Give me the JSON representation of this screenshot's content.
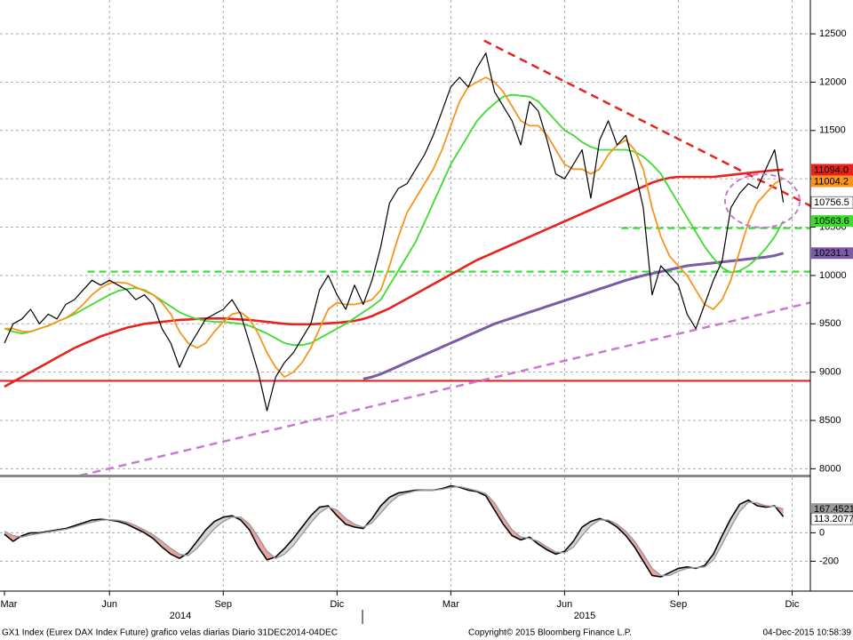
{
  "chart_data": {
    "type": "line",
    "categories": [
      "Mar",
      null,
      null,
      null,
      null,
      null,
      null,
      null,
      null,
      null,
      null,
      null,
      "Jun",
      null,
      null,
      null,
      null,
      null,
      null,
      null,
      null,
      null,
      null,
      null,
      null,
      "Sep",
      null,
      null,
      null,
      null,
      null,
      null,
      null,
      null,
      null,
      null,
      null,
      null,
      "Dic",
      null,
      null,
      null,
      null,
      null,
      null,
      null,
      null,
      null,
      null,
      null,
      null,
      "Mar",
      null,
      null,
      null,
      null,
      null,
      null,
      null,
      null,
      null,
      null,
      null,
      null,
      "Jun",
      null,
      null,
      null,
      null,
      null,
      null,
      null,
      null,
      null,
      null,
      null,
      null,
      "Sep",
      null,
      null,
      null,
      null,
      null,
      null,
      null,
      null,
      null,
      null,
      null,
      null,
      "Dic"
    ],
    "years": [
      "2014",
      "2015"
    ],
    "ylim": [
      7930,
      12850
    ],
    "yticks": [
      8000,
      8500,
      9000,
      9500,
      10000,
      10500,
      11000,
      11500,
      12000,
      12500
    ],
    "grid": true,
    "series": [
      {
        "color": "#000000",
        "values": [
          9300,
          9500,
          9550,
          9650,
          9500,
          9600,
          9550,
          9700,
          9750,
          9850,
          9950,
          9900,
          9950,
          9900,
          9850,
          9750,
          9800,
          9700,
          9450,
          9300,
          9050,
          9250,
          9400,
          9550,
          9600,
          9650,
          9750,
          9600,
          9300,
          9000,
          8600,
          8950,
          9100,
          9200,
          9350,
          9500,
          9850,
          10000,
          9800,
          9650,
          9900,
          9700,
          9950,
          10300,
          10750,
          10900,
          10950,
          11100,
          11250,
          11450,
          11700,
          11950,
          12050,
          11950,
          12150,
          12300,
          11900,
          11750,
          11600,
          11350,
          11800,
          11700,
          11400,
          11050,
          11000,
          11150,
          11300,
          10800,
          11400,
          11600,
          11350,
          11450,
          11100,
          10700,
          9800,
          10100,
          10000,
          9900,
          9600,
          9450,
          9700,
          9950,
          10150,
          10700,
          10850,
          10950,
          10900,
          11100,
          11300,
          10756.5,
          null
        ]
      },
      {
        "color": "#f7941d",
        "values": [
          9450,
          9450,
          9420,
          9420,
          9450,
          9480,
          9520,
          9560,
          9620,
          9700,
          9800,
          9870,
          9920,
          9930,
          9920,
          9880,
          9840,
          9800,
          9720,
          9600,
          9420,
          9300,
          9250,
          9300,
          9420,
          9520,
          9600,
          9620,
          9550,
          9400,
          9200,
          9050,
          8950,
          9000,
          9100,
          9250,
          9450,
          9650,
          9720,
          9700,
          9700,
          9720,
          9750,
          9850,
          10100,
          10400,
          10650,
          10800,
          10950,
          11100,
          11300,
          11550,
          11800,
          11950,
          12000,
          12050,
          12000,
          11900,
          11750,
          11600,
          11550,
          11550,
          11450,
          11300,
          11150,
          11100,
          11100,
          11050,
          11100,
          11250,
          11350,
          11400,
          11300,
          11100,
          10700,
          10400,
          10200,
          10100,
          10000,
          9850,
          9700,
          9650,
          9750,
          9950,
          10250,
          10550,
          10750,
          10850,
          10950,
          11004.2,
          null
        ]
      },
      {
        "color": "#3ddc2e",
        "values": [
          9450,
          9420,
          9400,
          9420,
          9450,
          9480,
          9520,
          9560,
          9600,
          9650,
          9700,
          9750,
          9800,
          9840,
          9860,
          9870,
          9850,
          9800,
          9740,
          9680,
          9620,
          9580,
          9550,
          9530,
          9520,
          9520,
          9510,
          9500,
          9480,
          9440,
          9400,
          9350,
          9300,
          9280,
          9280,
          9300,
          9350,
          9400,
          9450,
          9500,
          9560,
          9620,
          9680,
          9750,
          9900,
          10050,
          10200,
          10350,
          10550,
          10750,
          10950,
          11150,
          11300,
          11450,
          11600,
          11700,
          11780,
          11850,
          11870,
          11860,
          11850,
          11800,
          11700,
          11600,
          11500,
          11450,
          11380,
          11330,
          11300,
          11300,
          11300,
          11300,
          11280,
          11230,
          11150,
          11050,
          10900,
          10750,
          10600,
          10450,
          10300,
          10180,
          10080,
          10030,
          10050,
          10100,
          10180,
          10280,
          10400,
          10563.6,
          null
        ]
      },
      {
        "color": "#e8231e",
        "last_label": "11094.0",
        "values": [
          8850,
          8900,
          8950,
          9000,
          9050,
          9100,
          9150,
          9200,
          9250,
          9290,
          9330,
          9370,
          9400,
          9430,
          9460,
          9480,
          9500,
          9510,
          9520,
          9530,
          9540,
          9545,
          9550,
          9555,
          9555,
          9555,
          9550,
          9545,
          9540,
          9530,
          9520,
          9510,
          9500,
          9495,
          9495,
          9495,
          9500,
          9505,
          9510,
          9520,
          9530,
          9550,
          9580,
          9620,
          9660,
          9710,
          9760,
          9810,
          9860,
          9910,
          9960,
          10010,
          10060,
          10110,
          10160,
          10200,
          10240,
          10280,
          10320,
          10360,
          10400,
          10440,
          10480,
          10520,
          10560,
          10600,
          10640,
          10680,
          10720,
          10760,
          10800,
          10840,
          10880,
          10920,
          10960,
          10990,
          11010,
          11020,
          11020,
          11020,
          11020,
          11020,
          11030,
          11040,
          11050,
          11060,
          11070,
          11080,
          11090,
          11094,
          null
        ]
      },
      {
        "color": "#7b5aa6",
        "values": [
          null,
          null,
          null,
          null,
          null,
          null,
          null,
          null,
          null,
          null,
          null,
          null,
          null,
          null,
          null,
          null,
          null,
          null,
          null,
          null,
          null,
          null,
          null,
          null,
          null,
          null,
          null,
          null,
          null,
          null,
          null,
          null,
          null,
          null,
          null,
          null,
          null,
          null,
          null,
          null,
          null,
          8930,
          8950,
          8980,
          9020,
          9060,
          9100,
          9140,
          9180,
          9220,
          9260,
          9300,
          9340,
          9380,
          9420,
          9460,
          9500,
          9530,
          9560,
          9590,
          9620,
          9650,
          9680,
          9710,
          9740,
          9770,
          9800,
          9830,
          9860,
          9890,
          9920,
          9950,
          9975,
          10000,
          10020,
          10040,
          10060,
          10080,
          10100,
          10110,
          10120,
          10130,
          10140,
          10150,
          10160,
          10170,
          10180,
          10190,
          10205,
          10231.1,
          null
        ]
      }
    ],
    "hlines": [
      {
        "value": 8910,
        "color": "#e8231e",
        "dashed": false,
        "from": 0
      },
      {
        "value": 10040,
        "color": "#33dd33",
        "dashed": true,
        "from": 10
      },
      {
        "value": 10490,
        "color": "#33dd33",
        "dashed": true,
        "from": 71
      }
    ],
    "trendlines": [
      {
        "color": "#e8231e",
        "points": [
          [
            54.8,
            12430
          ],
          [
            92.1,
            10720
          ]
        ]
      },
      {
        "color": "#c77ad0",
        "points": [
          [
            8.6,
            7930
          ],
          [
            92.1,
            9720
          ]
        ]
      }
    ],
    "oscillator": {
      "ylim": [
        -410,
        390
      ],
      "yticks": [
        -200,
        0
      ],
      "series": [
        {
          "color": "#000000",
          "values": [
            -10,
            -60,
            -20,
            0,
            0,
            10,
            20,
            30,
            50,
            70,
            90,
            95,
            90,
            80,
            60,
            30,
            0,
            -40,
            -100,
            -150,
            -180,
            -140,
            -60,
            20,
            80,
            110,
            120,
            90,
            20,
            -100,
            -190,
            -170,
            -110,
            -40,
            40,
            120,
            180,
            190,
            120,
            60,
            40,
            30,
            100,
            190,
            250,
            280,
            290,
            300,
            300,
            300,
            310,
            330,
            320,
            300,
            290,
            260,
            160,
            60,
            -20,
            -50,
            -30,
            -80,
            -120,
            -150,
            -130,
            -60,
            40,
            80,
            100,
            80,
            40,
            -20,
            -100,
            -200,
            -300,
            -310,
            -280,
            -250,
            -240,
            -250,
            -230,
            -150,
            -20,
            100,
            200,
            230,
            190,
            180,
            190,
            113.2077,
            null
          ]
        },
        {
          "color": "#9a9a9a",
          "values": [
            10,
            -20,
            -30,
            -15,
            -5,
            5,
            15,
            25,
            40,
            60,
            75,
            88,
            92,
            88,
            75,
            50,
            20,
            -15,
            -60,
            -110,
            -150,
            -160,
            -110,
            -40,
            30,
            80,
            110,
            110,
            60,
            -30,
            -130,
            -180,
            -150,
            -90,
            -10,
            70,
            140,
            180,
            160,
            100,
            60,
            40,
            70,
            140,
            210,
            260,
            280,
            295,
            300,
            300,
            305,
            320,
            325,
            310,
            295,
            275,
            210,
            110,
            20,
            -30,
            -40,
            -60,
            -100,
            -135,
            -140,
            -100,
            -20,
            50,
            90,
            90,
            60,
            10,
            -60,
            -150,
            -250,
            -300,
            -300,
            -270,
            -250,
            -245,
            -240,
            -190,
            -80,
            40,
            150,
            215,
            210,
            190,
            185,
            167.4521,
            null
          ]
        }
      ]
    },
    "footer": {
      "left": "GX1 Index (Eurex DAX Index Future) grafico velas diarias  Diario 31DEC2014-04DEC",
      "center": "Copyright© 2015 Bloomberg Finance L.P.",
      "right": "04-Dec-2015 10:58:39"
    }
  }
}
